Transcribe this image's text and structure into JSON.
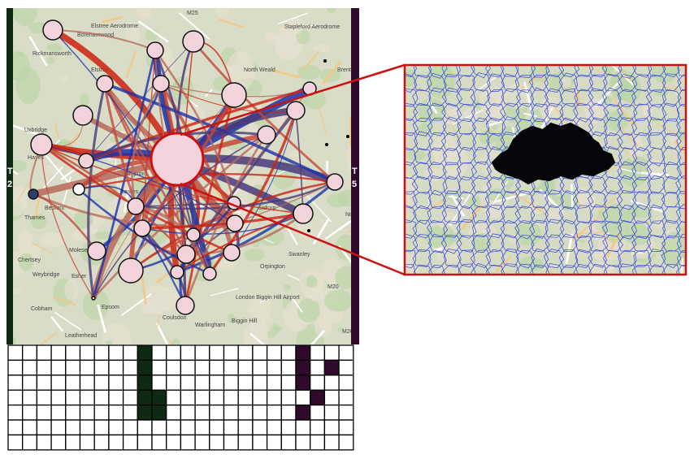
{
  "map": {
    "place_labels": [
      "Borehamwood",
      "Elstree Aerodrome",
      "M25",
      "Stapleford Aerodrome",
      "North Weald",
      "Rickmansworth",
      "Brentwood",
      "Uxbridge",
      "Hayes",
      "Bedfont",
      "Hampton",
      "Barnes",
      "Molesey",
      "Esher",
      "Weybridge",
      "Cobham",
      "Leatherhead",
      "Epsom",
      "Coulsdon",
      "Warlingham",
      "Biggin Hill",
      "Orpington",
      "Swanley",
      "Sidcup",
      "London Biggin Hill Airport",
      "M20",
      "M26",
      "Thames",
      "Chertsey",
      "Elstree",
      "Norw..."
    ],
    "side_labels": {
      "left": [
        "T",
        "2"
      ],
      "right": [
        "T",
        "5"
      ]
    },
    "colors": {
      "left_bar": "#0d2b12",
      "right_bar": "#2f0a2c",
      "node_fill": "#f2d3dc",
      "node_stroke": "#111111",
      "hub_stroke": "#cc1111",
      "flow_red": "#cc2211",
      "flow_blue": "#1a33aa",
      "flow_purple": "#4a3a7a",
      "inset_border": "#cc1111",
      "voronoi_line": "#3344dd",
      "dark_region": "#05050a"
    }
  },
  "grid": {
    "rows": 7,
    "cols": 24,
    "filled_cells": [
      {
        "row": 0,
        "col": 9,
        "color": "#0f2a12"
      },
      {
        "row": 1,
        "col": 9,
        "color": "#0f2a12"
      },
      {
        "row": 2,
        "col": 9,
        "color": "#0f2a12"
      },
      {
        "row": 3,
        "col": 9,
        "color": "#0f2a12"
      },
      {
        "row": 3,
        "col": 10,
        "color": "#0f2a12"
      },
      {
        "row": 4,
        "col": 9,
        "color": "#0f2a12"
      },
      {
        "row": 4,
        "col": 10,
        "color": "#0f2a12"
      },
      {
        "row": 0,
        "col": 20,
        "color": "#2f0a2c"
      },
      {
        "row": 1,
        "col": 20,
        "color": "#2f0a2c"
      },
      {
        "row": 1,
        "col": 22,
        "color": "#2f0a2c"
      },
      {
        "row": 2,
        "col": 20,
        "color": "#2f0a2c"
      },
      {
        "row": 3,
        "col": 21,
        "color": "#2f0a2c"
      },
      {
        "row": 4,
        "col": 20,
        "color": "#2f0a2c"
      }
    ]
  }
}
